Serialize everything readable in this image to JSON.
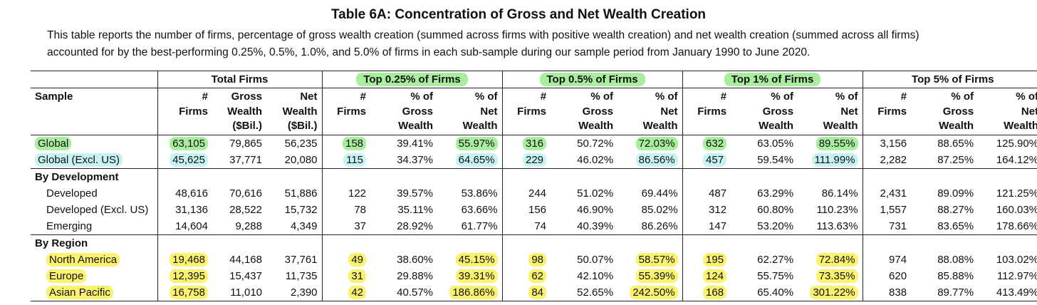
{
  "title": "Table 6A: Concentration of Gross and Net Wealth Creation",
  "description_line1": "This table reports the number of firms, percentage of gross wealth creation (summed across firms with positive wealth creation) and net wealth creation (summed across all firms)",
  "description_line2": "accounted for by the best-performing 0.25%, 0.5%, 1.0%, and 5.0% of firms in each sub-sample during our sample period from January 1990 to June 2020.",
  "groups": [
    "Total Firms",
    "Top 0.25% of Firms",
    "Top 0.5% of Firms",
    "Top 1% of Firms",
    "Top 5% of Firms"
  ],
  "sample_header": "Sample",
  "subheaders": {
    "total": [
      "#<br>Firms",
      "Gross<br>Wealth<br>($Bil.)",
      "Net<br>Wealth<br>($Bil.)"
    ],
    "top": [
      "#<br>Firms",
      "% of<br>Gross<br>Wealth",
      "% of<br>Net<br>Wealth"
    ]
  },
  "rows_main": [
    {
      "label": "Global",
      "values": [
        "63,105",
        "79,865",
        "56,235",
        "158",
        "39.41%",
        "55.97%",
        "316",
        "50.72%",
        "72.03%",
        "632",
        "63.05%",
        "89.55%",
        "3,156",
        "88.65%",
        "125.90%"
      ]
    },
    {
      "label": "Global (Excl. US)",
      "values": [
        "45,625",
        "37,771",
        "20,080",
        "115",
        "34.37%",
        "64.65%",
        "229",
        "46.02%",
        "86.56%",
        "457",
        "59.54%",
        "111.99%",
        "2,282",
        "87.25%",
        "164.12%"
      ]
    }
  ],
  "section_development": "By Development",
  "rows_development": [
    {
      "label": "Developed",
      "values": [
        "48,616",
        "70,616",
        "51,886",
        "122",
        "39.57%",
        "53.86%",
        "244",
        "51.02%",
        "69.44%",
        "487",
        "63.29%",
        "86.14%",
        "2,431",
        "89.09%",
        "121.25%"
      ]
    },
    {
      "label": "Developed (Excl. US)",
      "values": [
        "31,136",
        "28,522",
        "15,732",
        "78",
        "35.11%",
        "63.66%",
        "156",
        "46.90%",
        "85.02%",
        "312",
        "60.80%",
        "110.23%",
        "1,557",
        "88.27%",
        "160.03%"
      ]
    },
    {
      "label": "Emerging",
      "values": [
        "14,604",
        "9,288",
        "4,349",
        "37",
        "28.92%",
        "61.77%",
        "74",
        "40.39%",
        "86.26%",
        "147",
        "53.20%",
        "113.63%",
        "731",
        "83.65%",
        "178.66%"
      ]
    }
  ],
  "section_region": "By Region",
  "rows_region": [
    {
      "label": "North America",
      "values": [
        "19,468",
        "44,168",
        "37,761",
        "49",
        "38.60%",
        "45.15%",
        "98",
        "50.07%",
        "58.57%",
        "195",
        "62.27%",
        "72.84%",
        "974",
        "88.08%",
        "103.02%"
      ]
    },
    {
      "label": "Europe",
      "values": [
        "12,395",
        "15,437",
        "11,735",
        "31",
        "29.88%",
        "39.31%",
        "62",
        "42.10%",
        "55.39%",
        "124",
        "55.75%",
        "73.35%",
        "620",
        "85.88%",
        "112.97%"
      ]
    },
    {
      "label": "Asian Pacific",
      "values": [
        "16,758",
        "11,010",
        "2,390",
        "42",
        "40.57%",
        "186.86%",
        "84",
        "52.65%",
        "242.50%",
        "168",
        "65.40%",
        "301.22%",
        "838",
        "89.77%",
        "413.49%"
      ]
    }
  ],
  "highlight_colors": {
    "green": "#a9ed9e",
    "cyan": "#c8f3f3",
    "yellow": "#fbf36f"
  }
}
